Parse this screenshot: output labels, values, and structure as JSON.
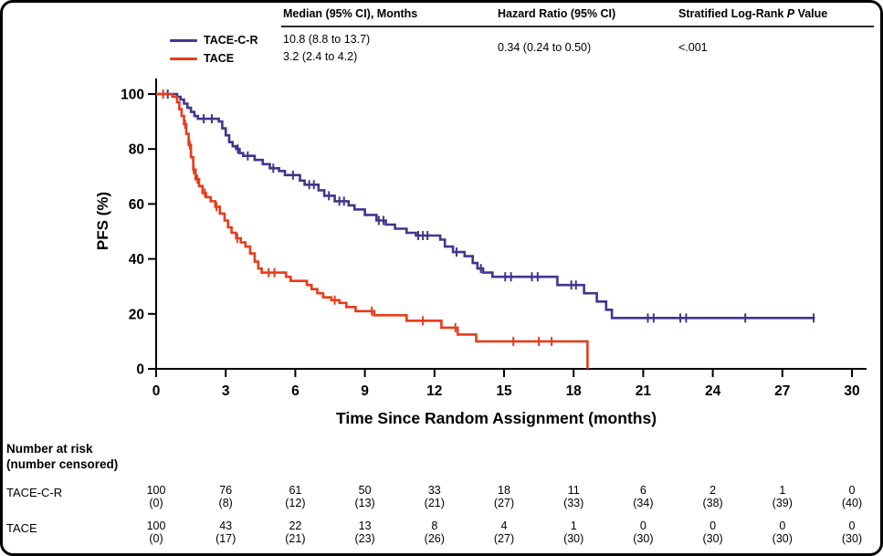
{
  "summary_table": {
    "col_median": "Median (95% CI), Months",
    "col_hr": "Hazard Ratio (95% CI)",
    "col_p_prefix": "Stratified Log-Rank ",
    "col_p_italic": "P",
    "col_p_suffix": " Value",
    "median_tace_cr": "10.8 (8.8 to 13.7)",
    "median_tace": "3.2 (2.4 to 4.2)",
    "hazard_ratio": "0.34 (0.24 to 0.50)",
    "p_value": "<.001"
  },
  "legend": {
    "items": [
      {
        "label": "TACE-C-R",
        "color": "#41358c"
      },
      {
        "label": "TACE",
        "color": "#e73c1b"
      }
    ]
  },
  "chart_data": {
    "type": "line",
    "subtype": "kaplan-meier-step",
    "title": "",
    "xlabel": "Time Since Random Assignment (months)",
    "ylabel": "PFS (%)",
    "xticks": [
      0,
      3,
      6,
      9,
      12,
      15,
      18,
      21,
      24,
      27,
      30
    ],
    "yticks": [
      0,
      20,
      40,
      60,
      80,
      100
    ],
    "xlim": [
      0,
      30.6
    ],
    "ylim": [
      0,
      100
    ],
    "grid": false,
    "legend_position": "top-left",
    "axis_color": "#000000",
    "series": [
      {
        "name": "TACE-C-R",
        "color": "#41358c",
        "points": [
          [
            0,
            100
          ],
          [
            0.9,
            99
          ],
          [
            1.05,
            98
          ],
          [
            1.2,
            96.5
          ],
          [
            1.35,
            95
          ],
          [
            1.5,
            93.5
          ],
          [
            1.65,
            92
          ],
          [
            1.8,
            91
          ],
          [
            2.7,
            90
          ],
          [
            2.85,
            87.5
          ],
          [
            3.0,
            85
          ],
          [
            3.15,
            82.5
          ],
          [
            3.3,
            81
          ],
          [
            3.45,
            80
          ],
          [
            3.6,
            78.5
          ],
          [
            3.75,
            77.5
          ],
          [
            4.25,
            76
          ],
          [
            4.6,
            74.5
          ],
          [
            4.9,
            73
          ],
          [
            5.3,
            72
          ],
          [
            5.55,
            70.5
          ],
          [
            6.2,
            68.5
          ],
          [
            6.4,
            67
          ],
          [
            7.0,
            65
          ],
          [
            7.25,
            63
          ],
          [
            7.7,
            61
          ],
          [
            8.3,
            59.5
          ],
          [
            8.55,
            58
          ],
          [
            9.0,
            56
          ],
          [
            9.5,
            54
          ],
          [
            9.9,
            52.5
          ],
          [
            10.3,
            51
          ],
          [
            10.8,
            49.5
          ],
          [
            11.2,
            48.5
          ],
          [
            12.25,
            47
          ],
          [
            12.45,
            44.5
          ],
          [
            12.8,
            42.5
          ],
          [
            13.3,
            41
          ],
          [
            13.65,
            38.5
          ],
          [
            13.85,
            36.5
          ],
          [
            14.1,
            35
          ],
          [
            14.5,
            33.5
          ],
          [
            17.3,
            30.5
          ],
          [
            18.45,
            27.5
          ],
          [
            19.0,
            24.5
          ],
          [
            19.4,
            21.5
          ],
          [
            19.65,
            18.5
          ],
          [
            28.4,
            18.5
          ]
        ],
        "censor_times": [
          0.5,
          2.05,
          2.4,
          3.52,
          3.95,
          5.05,
          5.9,
          6.6,
          6.8,
          7.45,
          7.9,
          8.1,
          9.6,
          9.8,
          11.3,
          11.5,
          11.7,
          12.95,
          14.0,
          15.05,
          15.3,
          16.2,
          16.45,
          17.9,
          18.1,
          21.2,
          21.45,
          22.6,
          22.85,
          25.4,
          28.35
        ]
      },
      {
        "name": "TACE",
        "color": "#e73c1b",
        "points": [
          [
            0,
            100
          ],
          [
            0.7,
            99
          ],
          [
            0.9,
            97
          ],
          [
            1.0,
            94.5
          ],
          [
            1.1,
            92
          ],
          [
            1.2,
            89
          ],
          [
            1.3,
            85.5
          ],
          [
            1.4,
            81.5
          ],
          [
            1.5,
            77
          ],
          [
            1.6,
            72.5
          ],
          [
            1.7,
            69
          ],
          [
            1.85,
            66.5
          ],
          [
            2.0,
            64
          ],
          [
            2.15,
            62.5
          ],
          [
            2.35,
            61
          ],
          [
            2.55,
            59
          ],
          [
            2.75,
            56.5
          ],
          [
            2.95,
            54
          ],
          [
            3.1,
            51.5
          ],
          [
            3.25,
            49.5
          ],
          [
            3.45,
            47.5
          ],
          [
            3.65,
            46
          ],
          [
            3.85,
            44.5
          ],
          [
            4.05,
            42
          ],
          [
            4.25,
            39
          ],
          [
            4.4,
            36.5
          ],
          [
            4.55,
            35
          ],
          [
            5.6,
            33.5
          ],
          [
            5.8,
            32
          ],
          [
            6.5,
            30.5
          ],
          [
            6.7,
            29
          ],
          [
            6.95,
            27.5
          ],
          [
            7.2,
            26
          ],
          [
            7.55,
            25
          ],
          [
            7.9,
            24
          ],
          [
            8.2,
            22.5
          ],
          [
            8.6,
            21
          ],
          [
            9.4,
            19.5
          ],
          [
            10.8,
            17.5
          ],
          [
            12.3,
            15
          ],
          [
            13.0,
            12.5
          ],
          [
            13.8,
            10
          ],
          [
            18.6,
            0
          ]
        ],
        "censor_times": [
          0.3,
          1.25,
          1.45,
          1.62,
          1.78,
          2.1,
          2.6,
          3.5,
          4.85,
          5.1,
          7.7,
          9.3,
          11.5,
          12.9,
          15.4,
          16.5,
          17.05
        ]
      }
    ]
  },
  "risk_table": {
    "title_line1": "Number at risk",
    "title_line2": "(number censored)",
    "times": [
      0,
      3,
      6,
      9,
      12,
      15,
      18,
      21,
      24,
      27,
      30
    ],
    "rows": [
      {
        "label": "TACE-C-R",
        "at_risk": [
          100,
          76,
          61,
          50,
          33,
          18,
          11,
          6,
          2,
          1,
          0
        ],
        "censored": [
          0,
          8,
          12,
          13,
          21,
          27,
          33,
          34,
          38,
          39,
          40
        ]
      },
      {
        "label": "TACE",
        "at_risk": [
          100,
          43,
          22,
          13,
          8,
          4,
          1,
          0,
          0,
          0,
          0
        ],
        "censored": [
          0,
          17,
          21,
          23,
          26,
          27,
          30,
          30,
          30,
          30,
          30
        ]
      }
    ]
  }
}
